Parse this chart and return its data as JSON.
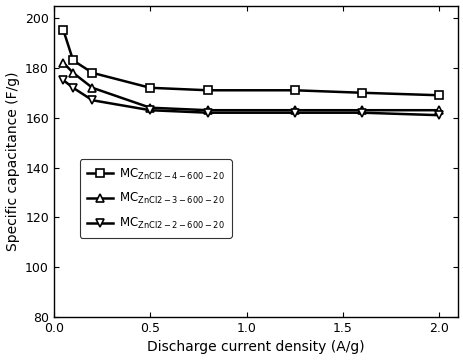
{
  "series": [
    {
      "label_main": "MC",
      "label_sub": "ZnCl2-4-600-20",
      "marker": "s",
      "x": [
        0.05,
        0.1,
        0.2,
        0.5,
        0.8,
        1.25,
        1.6,
        2.0
      ],
      "y": [
        195,
        183,
        178,
        172,
        171,
        171,
        170,
        169
      ]
    },
    {
      "label_main": "MC",
      "label_sub": "ZnCl2-3-600-20",
      "marker": "^",
      "x": [
        0.05,
        0.1,
        0.2,
        0.5,
        0.8,
        1.25,
        1.6,
        2.0
      ],
      "y": [
        182,
        178,
        172,
        164,
        163,
        163,
        163,
        163
      ]
    },
    {
      "label_main": "MC",
      "label_sub": "ZnCl2-2-600-20",
      "marker": "v",
      "x": [
        0.05,
        0.1,
        0.2,
        0.5,
        0.8,
        1.25,
        1.6,
        2.0
      ],
      "y": [
        175,
        172,
        167,
        163,
        162,
        162,
        162,
        161
      ]
    }
  ],
  "xlabel": "Discharge current density (A/g)",
  "ylabel": "Specific capacitance (F/g)",
  "xlim": [
    0,
    2.1
  ],
  "ylim": [
    80,
    205
  ],
  "xticks": [
    0.0,
    0.5,
    1.0,
    1.5,
    2.0
  ],
  "yticks": [
    80,
    100,
    120,
    140,
    160,
    180,
    200
  ],
  "color": "black",
  "linewidth": 1.8,
  "markersize": 6,
  "background_color": "#ffffff"
}
